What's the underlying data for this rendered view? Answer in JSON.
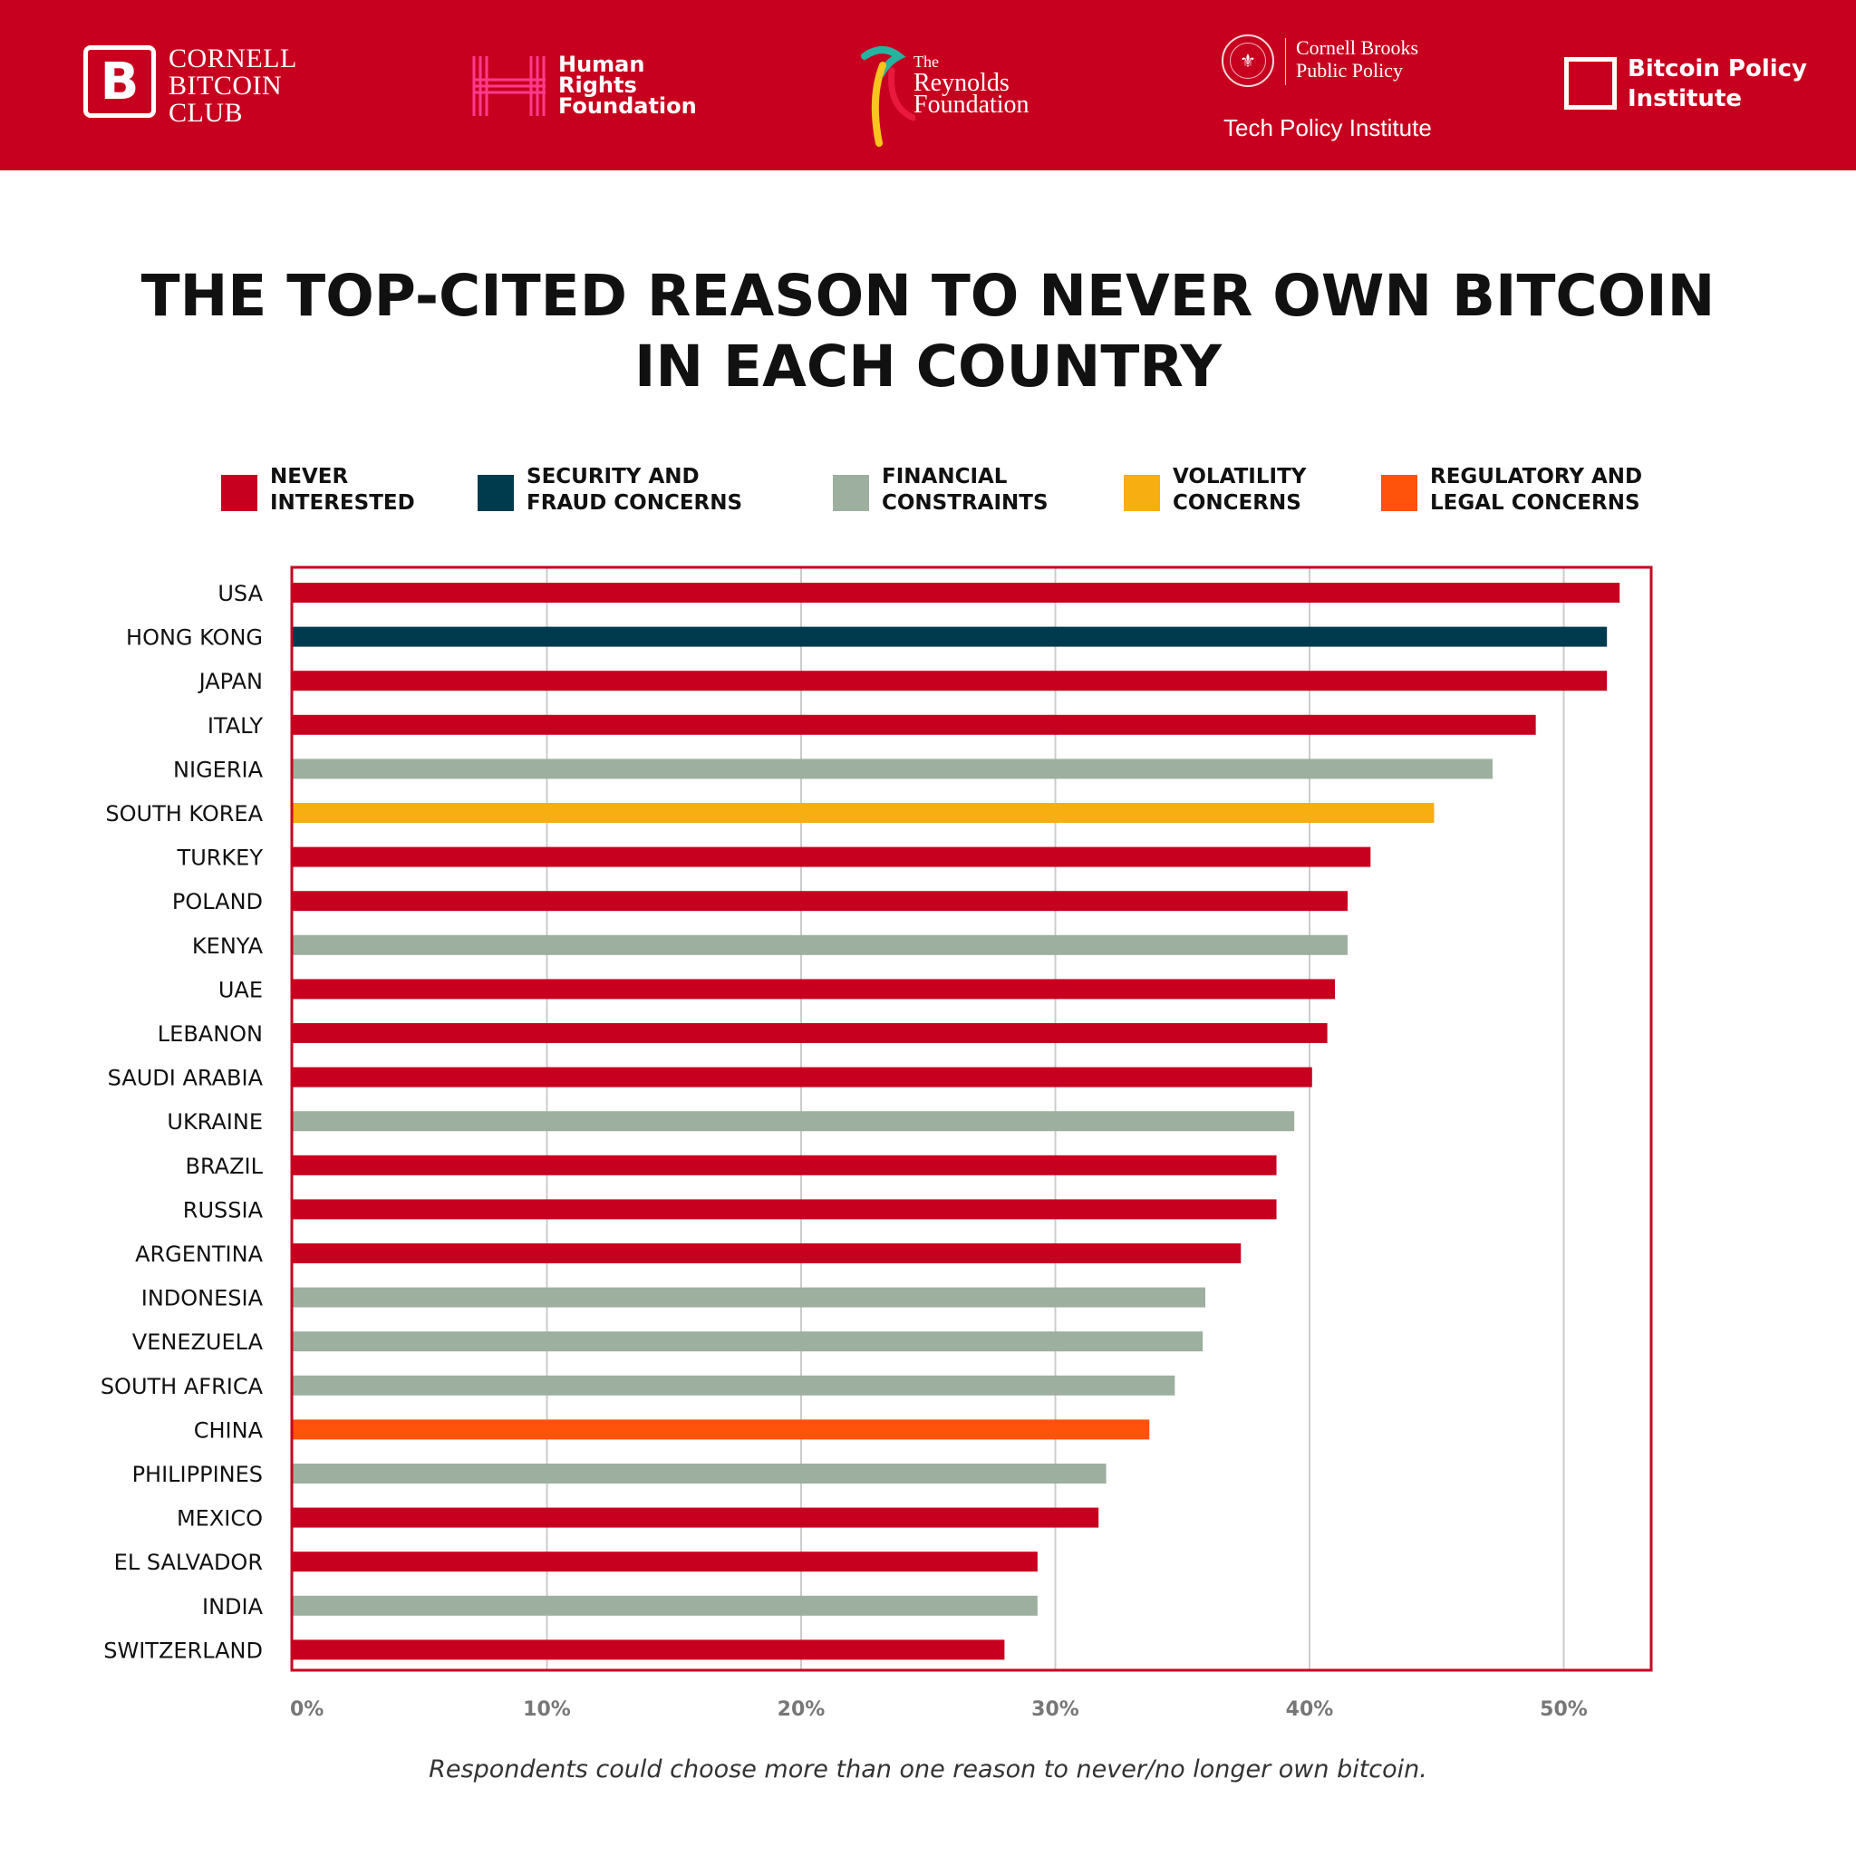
{
  "header": {
    "logos": {
      "cornell_bitcoin_club": {
        "mark": "B",
        "line1": "CORNELL",
        "line2": "BITCOIN",
        "line3": "CLUB"
      },
      "human_rights_foundation": {
        "line1": "Human",
        "line2": "Rights",
        "line3": "Foundation"
      },
      "reynolds_foundation": {
        "the": "The",
        "line1": "Reynolds",
        "line2": "Foundation"
      },
      "cornell_brooks": {
        "line1": "Cornell Brooks",
        "line2": "Public Policy",
        "line3": "Tech Policy Institute"
      },
      "bitcoin_policy_institute": {
        "line1": "Bitcoin Policy",
        "line2": "Institute"
      }
    },
    "banner_color": "#c8001f"
  },
  "title": "THE TOP-CITED REASON TO NEVER OWN BITCOIN IN EACH COUNTRY",
  "legend": [
    {
      "key": "never",
      "label": "NEVER\nINTERESTED",
      "color": "#c8001f"
    },
    {
      "key": "security",
      "label": "SECURITY AND\nFRAUD CONCERNS",
      "color": "#003a4d"
    },
    {
      "key": "financial",
      "label": "FINANCIAL\nCONSTRAINTS",
      "color": "#9daf9f"
    },
    {
      "key": "volatility",
      "label": "VOLATILITY\nCONCERNS",
      "color": "#f7ae10"
    },
    {
      "key": "regulatory",
      "label": "REGULATORY AND\nLEGAL CONCERNS",
      "color": "#ff520a"
    }
  ],
  "chart_data": {
    "type": "bar",
    "orientation": "horizontal",
    "title": "THE TOP-CITED REASON TO NEVER OWN BITCOIN IN EACH COUNTRY",
    "xlabel": "",
    "ylabel": "",
    "xlim": [
      0,
      53.5
    ],
    "xticks": [
      0,
      10,
      20,
      30,
      40,
      50
    ],
    "xtick_labels": [
      "0%",
      "10%",
      "20%",
      "30%",
      "40%",
      "50%"
    ],
    "grid": true,
    "categories": [
      "USA",
      "HONG KONG",
      "JAPAN",
      "ITALY",
      "NIGERIA",
      "SOUTH KOREA",
      "TURKEY",
      "POLAND",
      "KENYA",
      "UAE",
      "LEBANON",
      "SAUDI ARABIA",
      "UKRAINE",
      "BRAZIL",
      "RUSSIA",
      "ARGENTINA",
      "INDONESIA",
      "VENEZUELA",
      "SOUTH AFRICA",
      "CHINA",
      "PHILIPPINES",
      "MEXICO",
      "EL SALVADOR",
      "INDIA",
      "SWITZERLAND"
    ],
    "values": [
      52.2,
      51.7,
      51.7,
      48.9,
      47.2,
      44.9,
      42.4,
      41.5,
      41.5,
      41.0,
      40.7,
      40.1,
      39.4,
      38.7,
      38.7,
      37.3,
      35.9,
      35.8,
      34.7,
      33.7,
      32.0,
      31.7,
      29.3,
      29.3,
      28.0
    ],
    "reasons": [
      "never",
      "security",
      "never",
      "never",
      "financial",
      "volatility",
      "never",
      "never",
      "financial",
      "never",
      "never",
      "never",
      "financial",
      "never",
      "never",
      "never",
      "financial",
      "financial",
      "financial",
      "regulatory",
      "financial",
      "never",
      "never",
      "financial",
      "never"
    ],
    "colors": {
      "never": "#c8001f",
      "security": "#003a4d",
      "financial": "#9daf9f",
      "volatility": "#f7ae10",
      "regulatory": "#ff520a"
    },
    "frame_color": "#c8001f",
    "gridline_color": "#cccccc"
  },
  "footnote": "Respondents could choose more than one reason to never/no longer own bitcoin."
}
